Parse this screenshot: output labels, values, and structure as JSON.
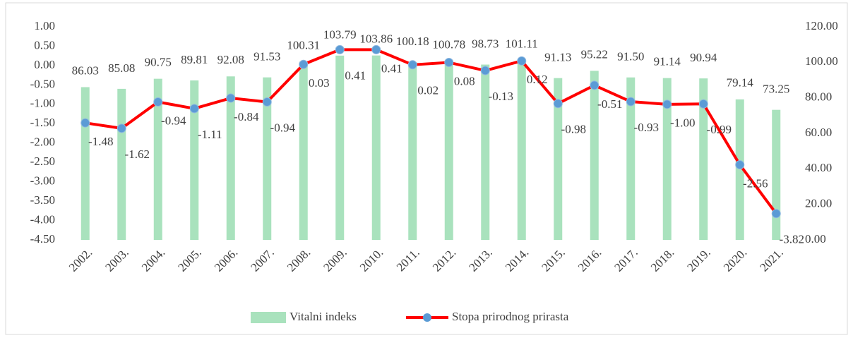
{
  "chart_data": {
    "type": "bar_line",
    "categories": [
      "2002.",
      "2003.",
      "2004.",
      "2005.",
      "2006.",
      "2007.",
      "2008.",
      "2009.",
      "2010.",
      "2011.",
      "2012.",
      "2013.",
      "2014.",
      "2015.",
      "2016.",
      "2017.",
      "2018.",
      "2019.",
      "2020.",
      "2021."
    ],
    "series": [
      {
        "name": "Vitalni indeks",
        "type": "bar",
        "axis": "y2",
        "color": "#a9e2bd",
        "values": [
          86.03,
          85.08,
          90.75,
          89.81,
          92.08,
          91.53,
          100.31,
          103.79,
          103.86,
          100.18,
          100.78,
          98.73,
          101.11,
          91.13,
          95.22,
          91.5,
          91.14,
          90.94,
          79.14,
          73.25
        ],
        "value_labels": [
          "86.03",
          "85.08",
          "90.75",
          "89.81",
          "92.08",
          "91.53",
          "100.31",
          "103.79",
          "103.86",
          "100.18",
          "100.78",
          "98.73",
          "101.11",
          "91.13",
          "95.22",
          "91.50",
          "91.14",
          "90.94",
          "79.14",
          "73.25"
        ]
      },
      {
        "name": "Stopa prirodnog prirasta",
        "type": "line",
        "axis": "y",
        "color": "#ff0000",
        "marker_color": "#5b9bd5",
        "values": [
          -1.48,
          -1.62,
          -0.94,
          -1.11,
          -0.84,
          -0.94,
          0.03,
          0.41,
          0.41,
          0.02,
          0.08,
          -0.13,
          0.12,
          -0.98,
          -0.51,
          -0.93,
          -1.0,
          -0.99,
          -2.56,
          -3.82
        ],
        "value_labels": [
          "-1.48",
          "-1.62",
          "-0.94",
          "-1.11",
          "-0.84",
          "-0.94",
          "0.03",
          "0.41",
          "0.41",
          "0.02",
          "0.08",
          "-0.13",
          "0.12",
          "-0.98",
          "-0.51",
          "-0.93",
          "-1.00",
          "-0.99",
          "-2.56",
          "-3.82"
        ]
      }
    ],
    "ylim": [
      -4.5,
      1.0
    ],
    "yticks": [
      {
        "value": 1.0,
        "label": "1.00"
      },
      {
        "value": 0.5,
        "label": "0.50"
      },
      {
        "value": 0.0,
        "label": "0.00"
      },
      {
        "value": -0.5,
        "label": "-0.50"
      },
      {
        "value": -1.0,
        "label": "-1.00"
      },
      {
        "value": -1.5,
        "label": "-1.50"
      },
      {
        "value": -2.0,
        "label": "-2.00"
      },
      {
        "value": -2.5,
        "label": "-2.50"
      },
      {
        "value": -3.0,
        "label": "-3.00"
      },
      {
        "value": -3.5,
        "label": "-3.50"
      },
      {
        "value": -4.0,
        "label": "-4.00"
      },
      {
        "value": -4.5,
        "label": "-4.50"
      }
    ],
    "y2lim": [
      0,
      120
    ],
    "y2ticks": [
      {
        "value": 120,
        "label": "120.00"
      },
      {
        "value": 100,
        "label": "100.00"
      },
      {
        "value": 80,
        "label": "80.00"
      },
      {
        "value": 60,
        "label": "60.00"
      },
      {
        "value": 40,
        "label": "40.00"
      },
      {
        "value": 20,
        "label": "20.00"
      },
      {
        "value": 0,
        "label": "0.00"
      }
    ],
    "legend": "bottom",
    "grid": false
  }
}
